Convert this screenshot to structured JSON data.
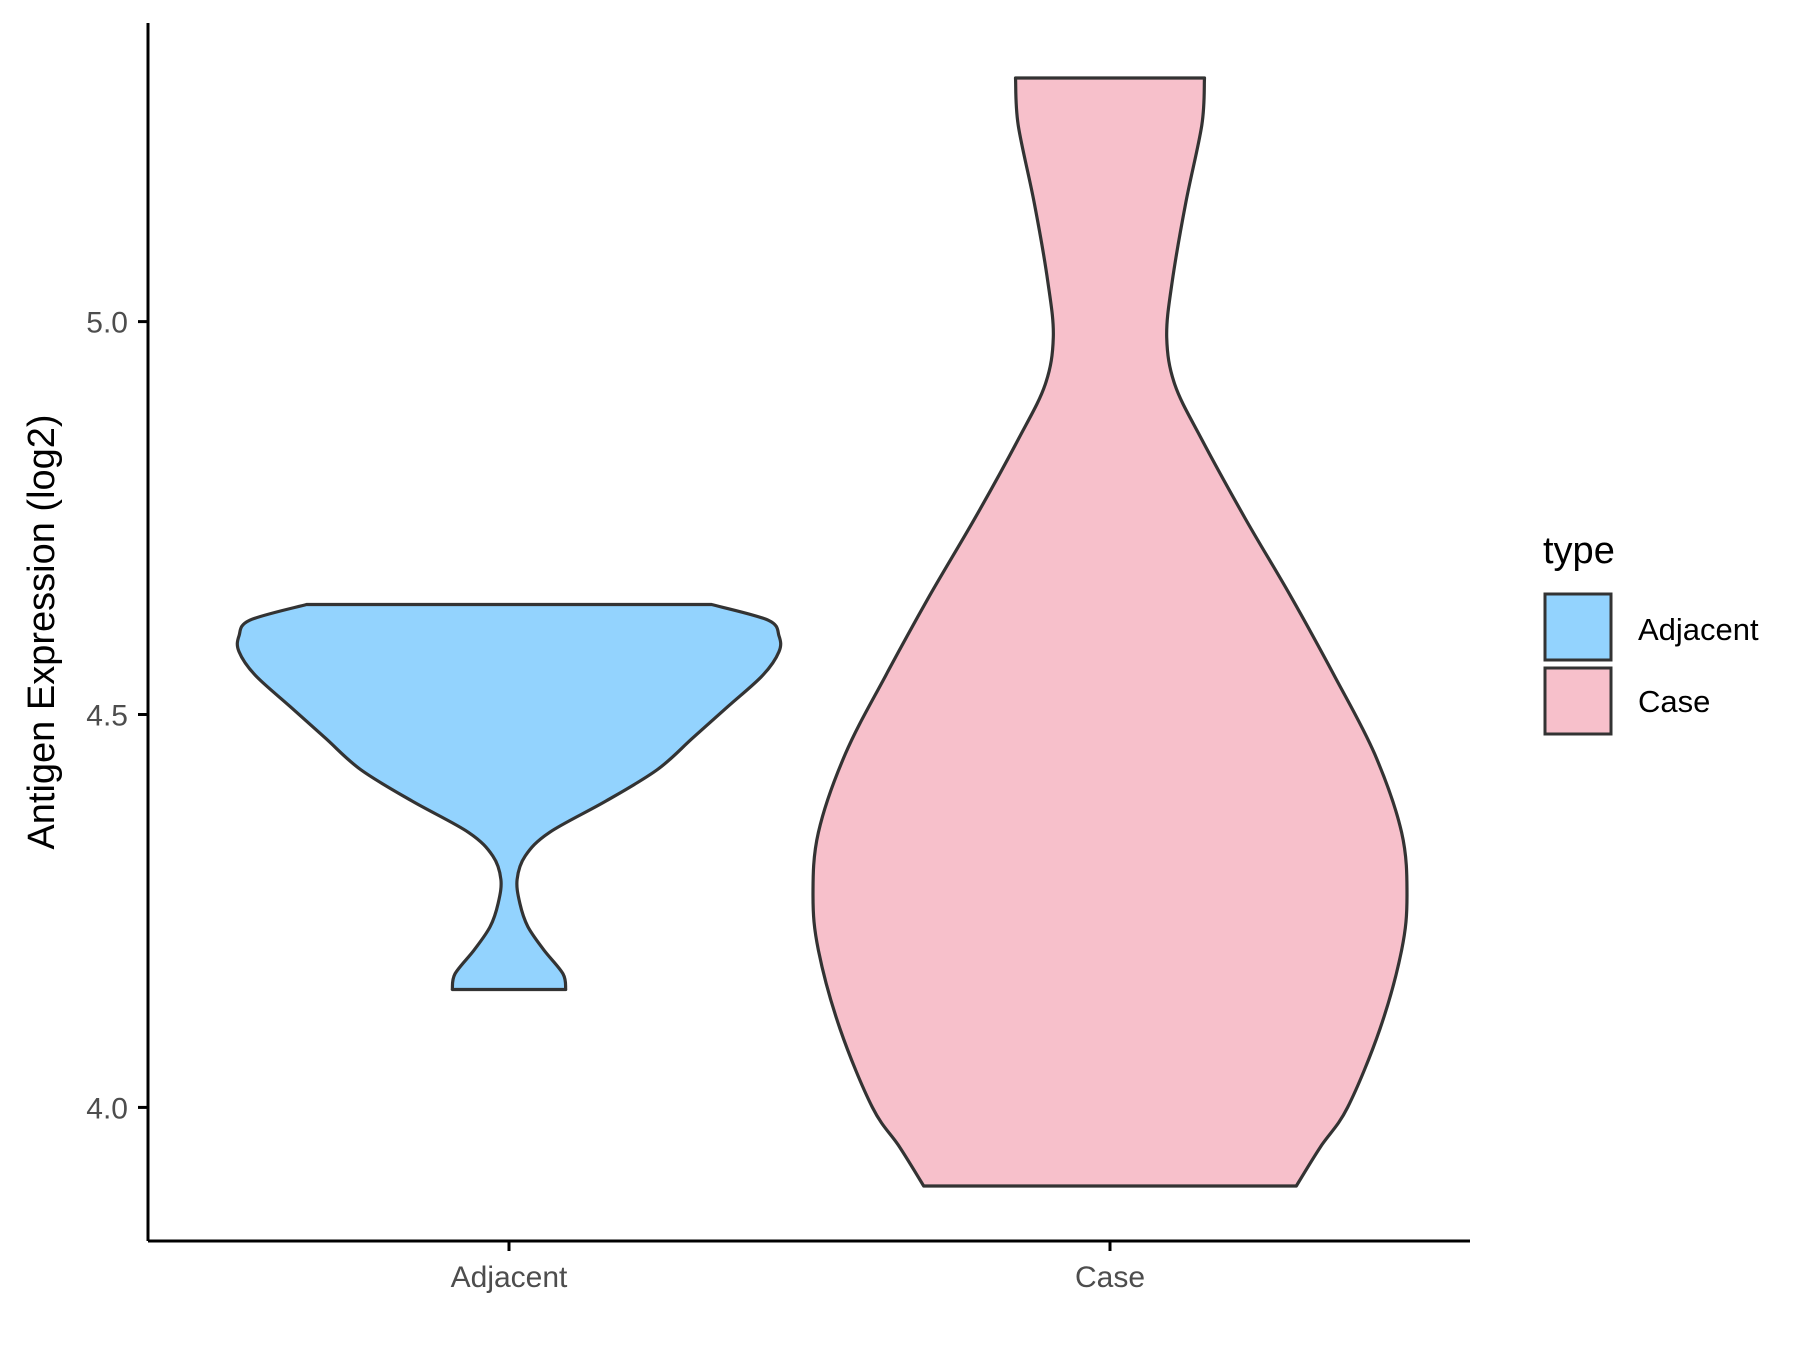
{
  "chart_data": {
    "type": "violin",
    "title": "",
    "xlabel": "",
    "ylabel": "Antigen Expression (log2)",
    "categories": [
      "Adjacent",
      "Case"
    ],
    "ylim": [
      3.83,
      5.38
    ],
    "yticks": [
      4.0,
      4.5,
      5.0
    ],
    "ytick_labels": [
      "4.0",
      "4.5",
      "5.0"
    ],
    "grid": false,
    "legend": {
      "title": "type",
      "position": "right",
      "entries": [
        {
          "label": "Adjacent",
          "color": "#93d3fe"
        },
        {
          "label": "Case",
          "color": "#f7c0cb"
        }
      ]
    },
    "series": [
      {
        "category": "Adjacent",
        "color": "#93d3fe",
        "min": 4.15,
        "max": 4.64,
        "density_profile": [
          [
            4.15,
            0.21
          ],
          [
            4.17,
            0.2
          ],
          [
            4.2,
            0.13
          ],
          [
            4.23,
            0.07
          ],
          [
            4.26,
            0.04
          ],
          [
            4.29,
            0.03
          ],
          [
            4.32,
            0.06
          ],
          [
            4.35,
            0.15
          ],
          [
            4.39,
            0.36
          ],
          [
            4.43,
            0.55
          ],
          [
            4.47,
            0.68
          ],
          [
            4.51,
            0.81
          ],
          [
            4.55,
            0.94
          ],
          [
            4.58,
            1.0
          ],
          [
            4.6,
            1.0
          ],
          [
            4.62,
            0.96
          ],
          [
            4.64,
            0.75
          ]
        ]
      },
      {
        "category": "Case",
        "color": "#f7c0cb",
        "min": 3.9,
        "max": 5.31,
        "density_profile": [
          [
            3.9,
            0.69
          ],
          [
            3.95,
            0.78
          ],
          [
            4.0,
            0.88
          ],
          [
            4.1,
            1.0
          ],
          [
            4.2,
            1.08
          ],
          [
            4.27,
            1.1
          ],
          [
            4.35,
            1.08
          ],
          [
            4.45,
            0.98
          ],
          [
            4.55,
            0.83
          ],
          [
            4.65,
            0.67
          ],
          [
            4.75,
            0.5
          ],
          [
            4.85,
            0.34
          ],
          [
            4.92,
            0.24
          ],
          [
            4.98,
            0.21
          ],
          [
            5.05,
            0.23
          ],
          [
            5.15,
            0.28
          ],
          [
            5.25,
            0.34
          ],
          [
            5.31,
            0.35
          ]
        ]
      }
    ]
  }
}
